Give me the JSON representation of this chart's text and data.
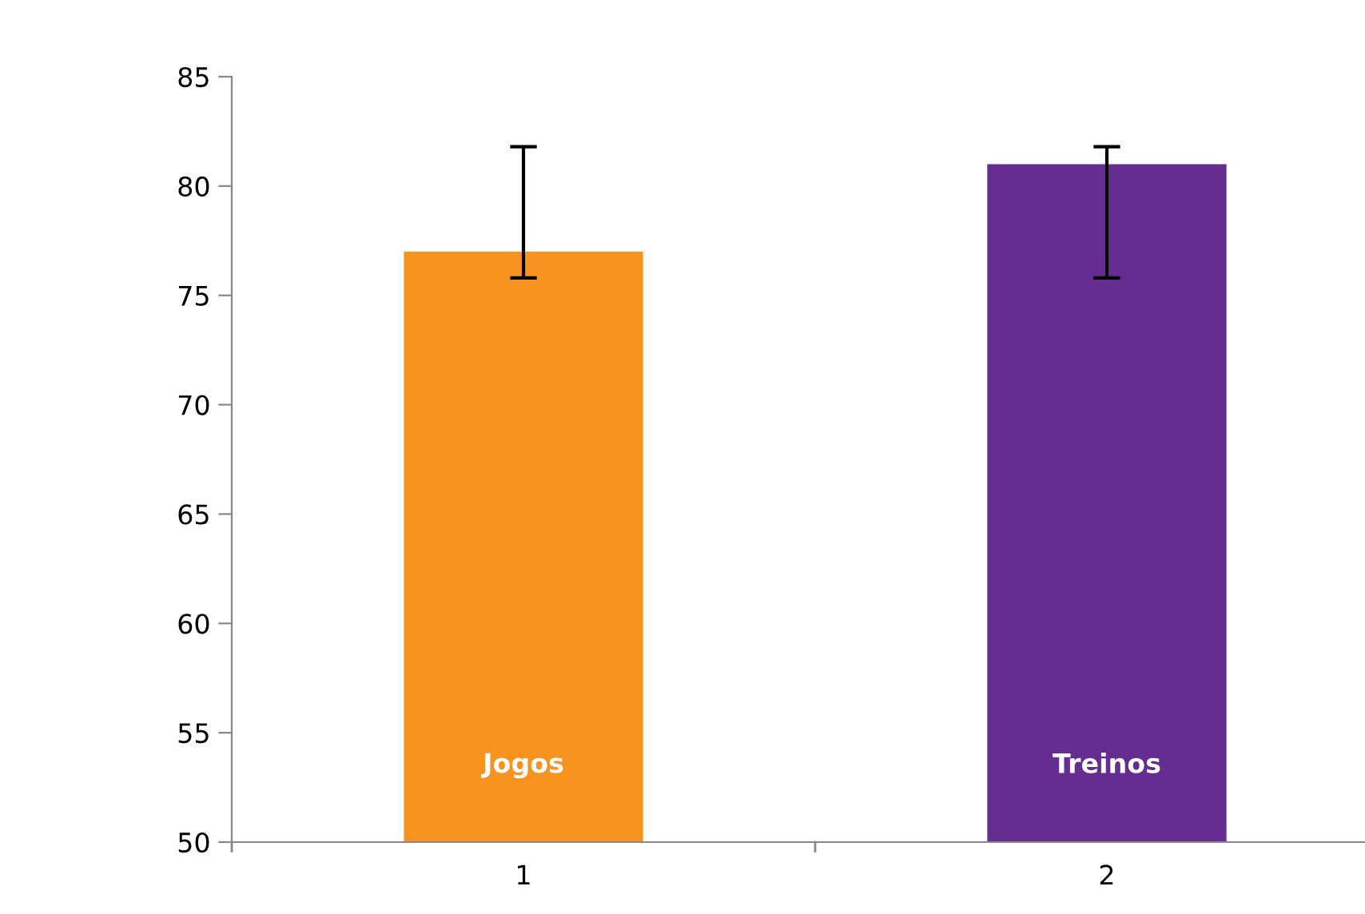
{
  "chart_data": {
    "type": "bar",
    "categories": [
      "1",
      "2"
    ],
    "values": [
      77,
      81
    ],
    "colors": [
      "#f7931e",
      "#662d91"
    ],
    "errors": [
      [
        75.8,
        81.8
      ],
      [
        75.8,
        81.8
      ]
    ],
    "ylim": [
      50,
      85
    ],
    "yticks": [
      50,
      55,
      60,
      65,
      70,
      75,
      80,
      85
    ],
    "grid": false,
    "annotations": [
      "Jogos",
      "Treinos"
    ]
  }
}
